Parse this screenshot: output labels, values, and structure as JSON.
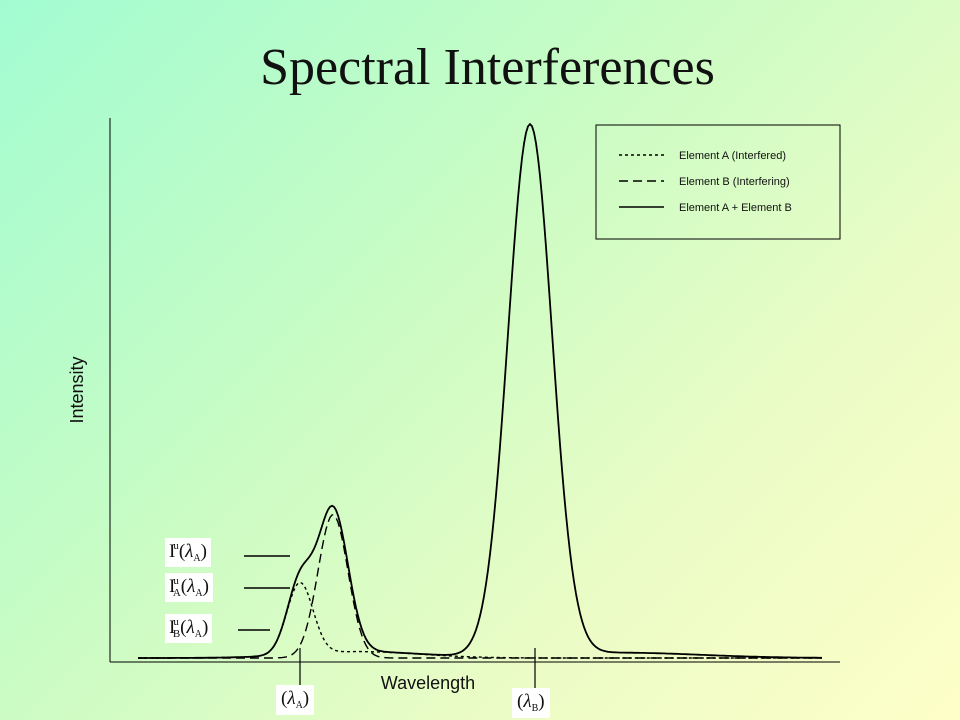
{
  "slide": {
    "title": "Spectral Interferences"
  },
  "chart_data": {
    "type": "line",
    "xlabel": "Wavelength",
    "ylabel": "Intensity",
    "legend_position": "top-right",
    "series": [
      {
        "name": "Element A (Interfered)",
        "style": "dotted",
        "peak": {
          "x": 300,
          "y": 0.135,
          "width": 13
        },
        "tail": 0.02
      },
      {
        "name": "Element B (Interfering)",
        "style": "dashed",
        "peak": {
          "x": 333,
          "y": 0.27,
          "width": 15
        },
        "tail": 0.0
      },
      {
        "name": "Element A + Element B",
        "style": "solid",
        "peak2": {
          "x": 530,
          "y": 1.0,
          "width": 22
        },
        "tail": 0.01
      }
    ],
    "x_range": [
      138,
      822
    ],
    "y_range": [
      0,
      1
    ],
    "annotations": {
      "lambda_A": {
        "x": 300,
        "sym": "λ",
        "sub": "A"
      },
      "lambda_B": {
        "x": 535,
        "sym": "λ",
        "sub": "B"
      },
      "I_total": {
        "base": "I",
        "sup": "u",
        "sub": "",
        "arg_sym": "λ",
        "arg_sub": "A"
      },
      "I_A": {
        "base": "I",
        "sup": "u",
        "sub": "A",
        "arg_sym": "λ",
        "arg_sub": "A"
      },
      "I_B": {
        "base": "I",
        "sup": "u",
        "sub": "B",
        "arg_sym": "λ",
        "arg_sub": "A"
      }
    }
  }
}
